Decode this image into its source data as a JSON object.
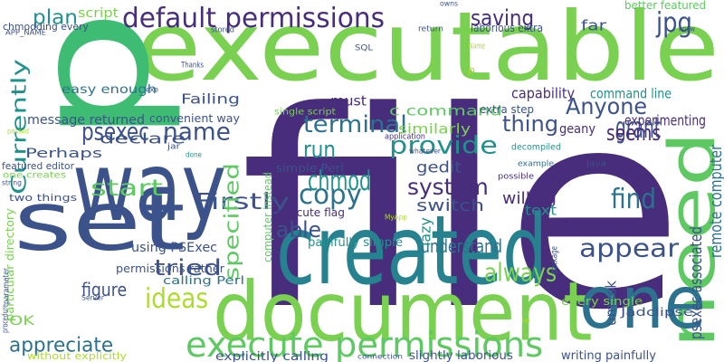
{
  "background": "#ffffff",
  "palette": {
    "purple": "#440154",
    "indigo": "#472d7b",
    "darkblue": "#3b528b",
    "blue": "#2c728e",
    "teal": "#21918c",
    "seagreen": "#28ae80",
    "green": "#5ec962",
    "lime": "#addc30"
  },
  "words": [
    {
      "text": "file",
      "color": "#472d7b"
    },
    {
      "text": "executable",
      "color": "#7ad151"
    },
    {
      "text": "p",
      "color": "#3fbc73"
    },
    {
      "text": "created",
      "color": "#26828e"
    },
    {
      "text": "document",
      "color": "#7ad151"
    },
    {
      "text": "way",
      "color": "#3b528b"
    },
    {
      "text": "set",
      "color": "#3b528b"
    },
    {
      "text": "need",
      "color": "#5ec962"
    },
    {
      "text": "one",
      "color": "#2c728e"
    },
    {
      "text": "default permissions",
      "color": "#472d7b"
    },
    {
      "text": "execute permissions",
      "color": "#5ec962"
    },
    {
      "text": "Firstly",
      "color": "#3b528b"
    },
    {
      "text": "system",
      "color": "#472d7b"
    },
    {
      "text": "copy",
      "color": "#2c728e"
    },
    {
      "text": "chmod",
      "color": "#21918c"
    },
    {
      "text": "run",
      "color": "#21918c"
    },
    {
      "text": "provide",
      "color": "#21918c"
    },
    {
      "text": "terminal",
      "color": "#2c728e"
    },
    {
      "text": "name",
      "color": "#3b528b"
    },
    {
      "text": "psexec",
      "color": "#3b528b"
    },
    {
      "text": "plan",
      "color": "#21918c"
    },
    {
      "text": "saving",
      "color": "#472d7b"
    },
    {
      "text": "jpg",
      "color": "#3b528b"
    },
    {
      "text": "grant",
      "color": "#3b528b"
    },
    {
      "text": "Anyone",
      "color": "#3b528b"
    },
    {
      "text": "thing",
      "color": "#3b528b"
    },
    {
      "text": "seems",
      "color": "#472d7b"
    },
    {
      "text": "find",
      "color": "#2c728e"
    },
    {
      "text": "appear",
      "color": "#3b528b"
    },
    {
      "text": "always",
      "color": "#7ad151"
    },
    {
      "text": "tried",
      "color": "#3b528b"
    },
    {
      "text": "ideas",
      "color": "#addc30"
    },
    {
      "text": "appreciate",
      "color": "#2c728e"
    },
    {
      "text": "able",
      "color": "#3b528b"
    },
    {
      "text": "start",
      "color": "#5ec962"
    },
    {
      "text": "Currently",
      "color": "#21918c"
    },
    {
      "text": "specified",
      "color": "#5ec962"
    },
    {
      "text": "understand",
      "color": "#2c728e"
    },
    {
      "text": "figure",
      "color": "#3b528b"
    },
    {
      "text": "remote computer",
      "color": "#2c728e"
    },
    {
      "text": "psexec associated",
      "color": "#3b528b"
    },
    {
      "text": "capability",
      "color": "#472d7b"
    },
    {
      "text": "command line",
      "color": "#21918c"
    },
    {
      "text": "experimenting",
      "color": "#472d7b"
    },
    {
      "text": "c command",
      "color": "#5ec962"
    },
    {
      "text": "similarly",
      "color": "#7ad151"
    },
    {
      "text": "willing",
      "color": "#472d7b"
    },
    {
      "text": "switch",
      "color": "#3b528b"
    },
    {
      "text": "text",
      "color": "#21918c"
    },
    {
      "text": "gedit",
      "color": "#3b528b"
    },
    {
      "text": "lazy",
      "color": "#21918c"
    },
    {
      "text": "umask",
      "color": "#3b528b"
    },
    {
      "text": "far",
      "color": "#3b528b"
    },
    {
      "text": "geany",
      "color": "#472d7b"
    },
    {
      "text": "must",
      "color": "#472d7b"
    },
    {
      "text": "Failing",
      "color": "#3b528b"
    },
    {
      "text": "message returned",
      "color": "#3b528b"
    },
    {
      "text": "declare",
      "color": "#3b528b"
    },
    {
      "text": "Perhaps",
      "color": "#3b528b"
    },
    {
      "text": "using PSExec",
      "color": "#3b528b"
    },
    {
      "text": "OK",
      "color": "#7ad151"
    },
    {
      "text": "script",
      "color": "#7ad151"
    },
    {
      "text": "easy enough",
      "color": "#2c728e"
    },
    {
      "text": "convenient way",
      "color": "#3b528b"
    },
    {
      "text": "extra step",
      "color": "#3b528b"
    },
    {
      "text": "slightly laborious",
      "color": "#3b528b"
    },
    {
      "text": "writing painfully",
      "color": "#3b528b"
    },
    {
      "text": "explicitly calling",
      "color": "#3b528b"
    },
    {
      "text": "painfully simple",
      "color": "#21918c"
    },
    {
      "text": "calling Perl",
      "color": "#2c728e"
    },
    {
      "text": "two things",
      "color": "#3b528b"
    },
    {
      "text": "permissions rather",
      "color": "#3b528b"
    },
    {
      "text": "particular directory",
      "color": "#7ad151"
    },
    {
      "text": "computer instead",
      "color": "#5ec962"
    },
    {
      "text": "simple Perl",
      "color": "#3b528b"
    },
    {
      "text": "execute flag",
      "color": "#472d7b"
    },
    {
      "text": "single script",
      "color": "#7ad151"
    },
    {
      "text": "every single",
      "color": "#7ad151"
    },
    {
      "text": "chmodding every",
      "color": "#3b528b"
    },
    {
      "text": "featured editor",
      "color": "#3b528b"
    },
    {
      "text": "one creates",
      "color": "#7ad151"
    },
    {
      "text": "better featured",
      "color": "#5ec962"
    },
    {
      "text": "laborious extra",
      "color": "#3b528b"
    },
    {
      "text": "Jadclipse",
      "color": "#3b528b"
    },
    {
      "text": "without explicitly",
      "color": "#addc30"
    },
    {
      "text": "decompiled",
      "color": "#21918c"
    },
    {
      "text": "possible",
      "color": "#472d7b"
    },
    {
      "text": "application",
      "color": "#472d7b"
    },
    {
      "text": "example",
      "color": "#2c728e"
    },
    {
      "text": "Java",
      "color": "#3b528b"
    },
    {
      "text": "stored",
      "color": "#3b528b"
    },
    {
      "text": "return",
      "color": "#3b528b"
    },
    {
      "text": "SQL",
      "color": "#3b528b"
    },
    {
      "text": "owns",
      "color": "#3b528b"
    },
    {
      "text": "Name",
      "color": "#addc30"
    },
    {
      "text": "APP_NAME",
      "color": "#3b528b"
    },
    {
      "text": "passed",
      "color": "#addc30"
    },
    {
      "text": "Thanks",
      "color": "#3b528b"
    },
    {
      "text": "exe",
      "color": "#3b528b"
    },
    {
      "text": "jar",
      "color": "#3b528b"
    },
    {
      "text": "done",
      "color": "#21918c"
    },
    {
      "text": "string",
      "color": "#3b528b"
    },
    {
      "text": "whatever",
      "color": "#3b528b"
    },
    {
      "text": "MyApp",
      "color": "#addc30"
    },
    {
      "text": "package",
      "color": "#3b528b"
    },
    {
      "text": "Server",
      "color": "#3b528b"
    },
    {
      "text": "parameter",
      "color": "#3b528b"
    },
    {
      "text": "procedure",
      "color": "#3b528b"
    },
    {
      "text": "connection",
      "color": "#3b528b"
    },
    {
      "text": "know",
      "color": "#3b528b"
    },
    {
      "text": "ie",
      "color": "#addc30"
    },
    {
      "text": "p",
      "color": "#addc30"
    }
  ]
}
